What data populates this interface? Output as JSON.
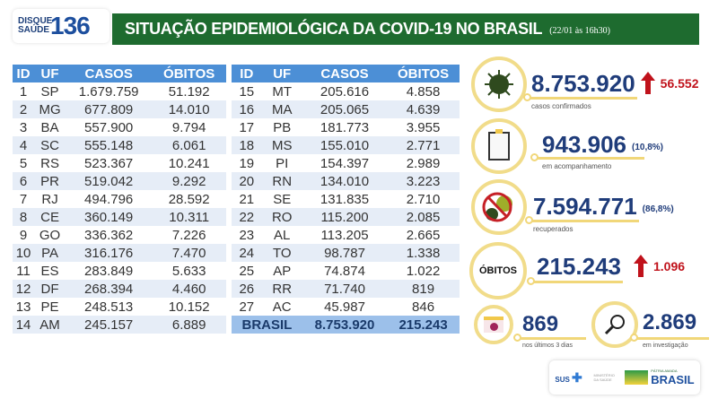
{
  "header": {
    "logo_top": "DISQUE",
    "logo_bottom": "SAÚDE",
    "logo_number": "136",
    "title": "SITUAÇÃO EPIDEMIOLÓGICA DA COVID-19 NO BRASIL",
    "date": "(22/01 às 16h30)"
  },
  "table": {
    "headers": [
      "ID",
      "UF",
      "CASOS",
      "ÓBITOS"
    ],
    "rows": [
      [
        "1",
        "SP",
        "1.679.759",
        "51.192"
      ],
      [
        "2",
        "MG",
        "677.809",
        "14.010"
      ],
      [
        "3",
        "BA",
        "557.900",
        "9.794"
      ],
      [
        "4",
        "SC",
        "555.148",
        "6.061"
      ],
      [
        "5",
        "RS",
        "523.367",
        "10.241"
      ],
      [
        "6",
        "PR",
        "519.042",
        "9.292"
      ],
      [
        "7",
        "RJ",
        "494.796",
        "28.592"
      ],
      [
        "8",
        "CE",
        "360.149",
        "10.311"
      ],
      [
        "9",
        "GO",
        "336.362",
        "7.226"
      ],
      [
        "10",
        "PA",
        "316.176",
        "7.470"
      ],
      [
        "11",
        "ES",
        "283.849",
        "5.633"
      ],
      [
        "12",
        "DF",
        "268.394",
        "4.460"
      ],
      [
        "13",
        "PE",
        "248.513",
        "10.152"
      ],
      [
        "14",
        "AM",
        "245.157",
        "6.889"
      ],
      [
        "15",
        "MT",
        "205.616",
        "4.858"
      ],
      [
        "16",
        "MA",
        "205.065",
        "4.639"
      ],
      [
        "17",
        "PB",
        "181.773",
        "3.955"
      ],
      [
        "18",
        "MS",
        "155.010",
        "2.771"
      ],
      [
        "19",
        "PI",
        "154.397",
        "2.989"
      ],
      [
        "20",
        "RN",
        "134.010",
        "3.223"
      ],
      [
        "21",
        "SE",
        "131.835",
        "2.710"
      ],
      [
        "22",
        "RO",
        "115.200",
        "2.085"
      ],
      [
        "23",
        "AL",
        "113.205",
        "2.665"
      ],
      [
        "24",
        "TO",
        "98.787",
        "1.338"
      ],
      [
        "25",
        "AP",
        "74.874",
        "1.022"
      ],
      [
        "26",
        "RR",
        "71.740",
        "819"
      ],
      [
        "27",
        "AC",
        "45.987",
        "846"
      ]
    ],
    "total": {
      "label": "BRASIL",
      "casos": "8.753.920",
      "obitos": "215.243"
    }
  },
  "stats": {
    "confirmed": {
      "value": "8.753.920",
      "increase": "56.552",
      "label": "casos confirmados",
      "icon": "virus-icon"
    },
    "monitoring": {
      "value": "943.906",
      "pct": "(10,8%)",
      "label": "em acompanhamento",
      "icon": "clipboard-icon"
    },
    "recovered": {
      "value": "7.594.771",
      "pct": "(86,8%)",
      "label": "recuperados",
      "icon": "no-virus-icon"
    },
    "deaths": {
      "badge": "ÓBITOS",
      "value": "215.243",
      "increase": "1.096"
    },
    "last3": {
      "value": "869",
      "label": "nos últimos 3 dias",
      "icon": "calendar-icon"
    },
    "investigation": {
      "value": "2.869",
      "label": "em investigação",
      "icon": "magnifier-icon"
    }
  },
  "footer": {
    "sus": "SUS",
    "ministry": "MINISTÉRIO DA SAÚDE",
    "gov_top": "PÁTRIA AMADA",
    "gov": "BRASIL"
  },
  "colors": {
    "title_bg": "#1e6b2f",
    "table_header": "#4c8fd6",
    "value": "#1f3c7a",
    "increase": "#c0121b",
    "ring": "#f1dc8a"
  }
}
